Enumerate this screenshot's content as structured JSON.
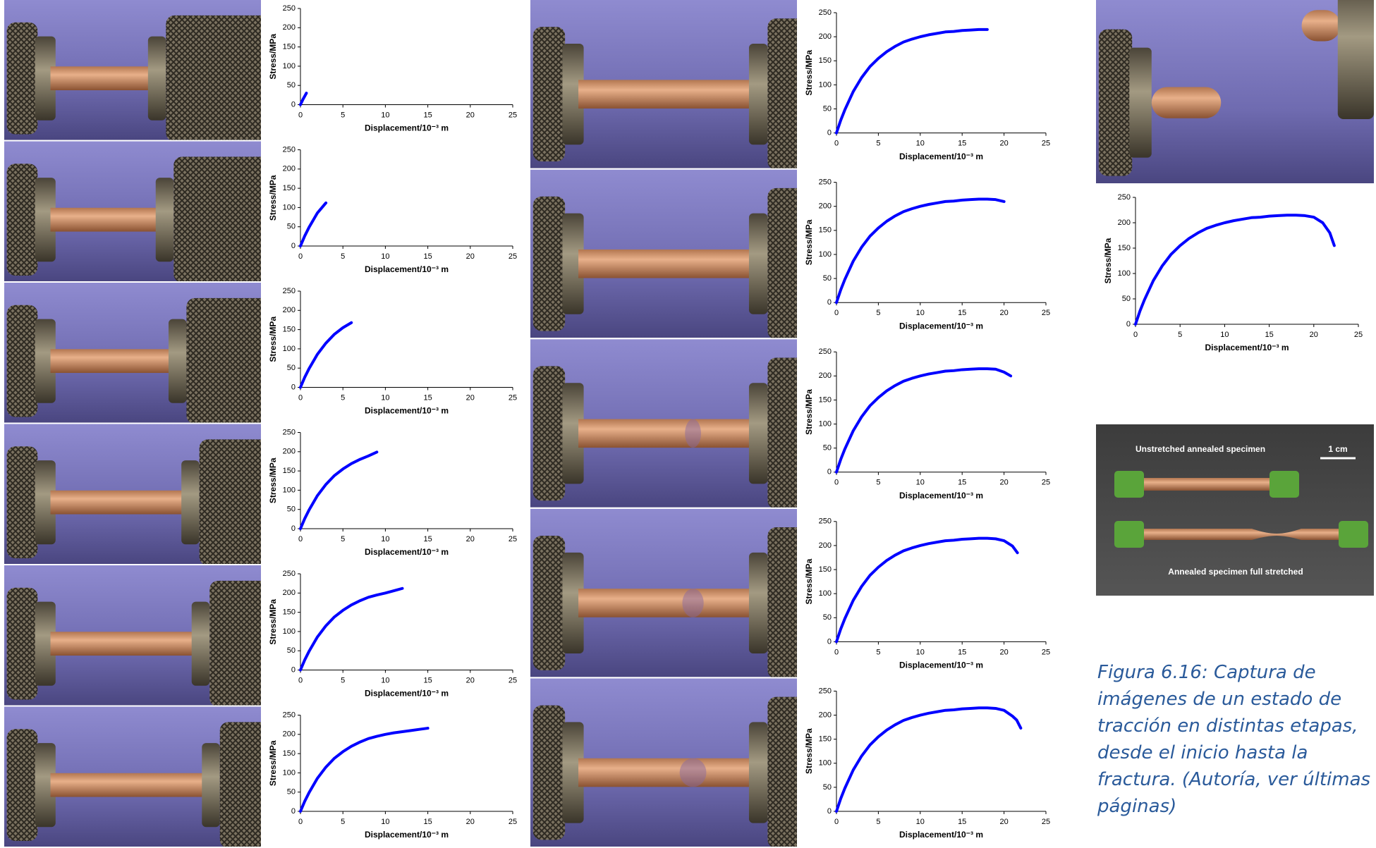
{
  "chart_data": [
    {
      "type": "line",
      "y_label": "Stress/MPa",
      "x_label": "Displacement/10⁻³ m",
      "xlim": [
        0,
        25
      ],
      "ylim": [
        0,
        250
      ],
      "xticks": [
        0,
        5,
        10,
        15,
        20,
        25
      ],
      "yticks": [
        0,
        50,
        100,
        150,
        200,
        250
      ],
      "series": [
        {
          "color": "#0000ff",
          "x": [
            0,
            0.3,
            0.7
          ],
          "values": [
            0,
            14,
            30
          ]
        }
      ]
    },
    {
      "type": "line",
      "y_label": "Stress/MPa",
      "x_label": "Displacement/10⁻³ m",
      "xlim": [
        0,
        25
      ],
      "ylim": [
        0,
        250
      ],
      "xticks": [
        0,
        5,
        10,
        15,
        20,
        25
      ],
      "yticks": [
        0,
        50,
        100,
        150,
        200,
        250
      ],
      "series": [
        {
          "color": "#0000ff",
          "x": [
            0,
            0.5,
            1,
            2,
            3
          ],
          "values": [
            0,
            26,
            48,
            86,
            112
          ]
        }
      ]
    },
    {
      "type": "line",
      "y_label": "Stress/MPa",
      "x_label": "Displacement/10⁻³ m",
      "xlim": [
        0,
        25
      ],
      "ylim": [
        0,
        250
      ],
      "xticks": [
        0,
        5,
        10,
        15,
        20,
        25
      ],
      "yticks": [
        0,
        50,
        100,
        150,
        200,
        250
      ],
      "series": [
        {
          "color": "#0000ff",
          "x": [
            0,
            0.5,
            1,
            2,
            3,
            4,
            5,
            6
          ],
          "values": [
            0,
            26,
            48,
            86,
            115,
            138,
            155,
            168
          ]
        }
      ]
    },
    {
      "type": "line",
      "y_label": "Stress/MPa",
      "x_label": "Displacement/10⁻³ m",
      "xlim": [
        0,
        25
      ],
      "ylim": [
        0,
        250
      ],
      "xticks": [
        0,
        5,
        10,
        15,
        20,
        25
      ],
      "yticks": [
        0,
        50,
        100,
        150,
        200,
        250
      ],
      "series": [
        {
          "color": "#0000ff",
          "x": [
            0,
            0.5,
            1,
            2,
            3,
            4,
            5,
            6,
            7,
            8,
            9
          ],
          "values": [
            0,
            26,
            48,
            86,
            115,
            138,
            155,
            169,
            180,
            189,
            199
          ]
        }
      ]
    },
    {
      "type": "line",
      "y_label": "Stress/MPa",
      "x_label": "Displacement/10⁻³ m",
      "xlim": [
        0,
        25
      ],
      "ylim": [
        0,
        250
      ],
      "xticks": [
        0,
        5,
        10,
        15,
        20,
        25
      ],
      "yticks": [
        0,
        50,
        100,
        150,
        200,
        250
      ],
      "series": [
        {
          "color": "#0000ff",
          "x": [
            0,
            0.5,
            1,
            2,
            3,
            4,
            5,
            6,
            7,
            8,
            9,
            10,
            11,
            12
          ],
          "values": [
            0,
            26,
            48,
            86,
            115,
            138,
            155,
            169,
            180,
            189,
            195,
            200,
            206,
            212
          ]
        }
      ]
    },
    {
      "type": "line",
      "y_label": "Stress/MPa",
      "x_label": "Displacement/10⁻³ m",
      "xlim": [
        0,
        25
      ],
      "ylim": [
        0,
        250
      ],
      "xticks": [
        0,
        5,
        10,
        15,
        20,
        25
      ],
      "yticks": [
        0,
        50,
        100,
        150,
        200,
        250
      ],
      "series": [
        {
          "color": "#0000ff",
          "x": [
            0,
            0.5,
            1,
            2,
            3,
            4,
            5,
            6,
            7,
            8,
            9,
            10,
            11,
            12,
            13,
            14,
            15
          ],
          "values": [
            0,
            26,
            48,
            86,
            115,
            138,
            155,
            169,
            180,
            189,
            195,
            200,
            204,
            207,
            210,
            213,
            216
          ]
        }
      ]
    },
    {
      "type": "line",
      "y_label": "Stress/MPa",
      "x_label": "Displacement/10⁻³ m",
      "xlim": [
        0,
        25
      ],
      "ylim": [
        0,
        250
      ],
      "xticks": [
        0,
        5,
        10,
        15,
        20,
        25
      ],
      "yticks": [
        0,
        50,
        100,
        150,
        200,
        250
      ],
      "series": [
        {
          "color": "#0000ff",
          "x": [
            0,
            0.5,
            1,
            2,
            3,
            4,
            5,
            6,
            7,
            8,
            9,
            10,
            11,
            12,
            13,
            14,
            15,
            16,
            17,
            18
          ],
          "values": [
            0,
            26,
            48,
            86,
            115,
            138,
            155,
            169,
            180,
            189,
            195,
            200,
            204,
            207,
            210,
            211,
            213,
            214,
            215,
            215
          ]
        }
      ]
    },
    {
      "type": "line",
      "y_label": "Stress/MPa",
      "x_label": "Displacement/10⁻³ m",
      "xlim": [
        0,
        25
      ],
      "ylim": [
        0,
        250
      ],
      "xticks": [
        0,
        5,
        10,
        15,
        20,
        25
      ],
      "yticks": [
        0,
        50,
        100,
        150,
        200,
        250
      ],
      "series": [
        {
          "color": "#0000ff",
          "x": [
            0,
            0.5,
            1,
            2,
            3,
            4,
            5,
            6,
            7,
            8,
            9,
            10,
            11,
            12,
            13,
            14,
            15,
            16,
            17,
            18,
            19,
            20
          ],
          "values": [
            0,
            26,
            48,
            86,
            115,
            138,
            155,
            169,
            180,
            189,
            195,
            200,
            204,
            207,
            210,
            211,
            213,
            214,
            215,
            215,
            214,
            210
          ]
        }
      ]
    },
    {
      "type": "line",
      "y_label": "Stress/MPa",
      "x_label": "Displacement/10⁻³ m",
      "xlim": [
        0,
        25
      ],
      "ylim": [
        0,
        250
      ],
      "xticks": [
        0,
        5,
        10,
        15,
        20,
        25
      ],
      "yticks": [
        0,
        50,
        100,
        150,
        200,
        250
      ],
      "series": [
        {
          "color": "#0000ff",
          "x": [
            0,
            0.5,
            1,
            2,
            3,
            4,
            5,
            6,
            7,
            8,
            9,
            10,
            11,
            12,
            13,
            14,
            15,
            16,
            17,
            18,
            19,
            20,
            20.8
          ],
          "values": [
            0,
            26,
            48,
            86,
            115,
            138,
            155,
            169,
            180,
            189,
            195,
            200,
            204,
            207,
            210,
            211,
            213,
            214,
            215,
            215,
            214,
            208,
            200
          ]
        }
      ]
    },
    {
      "type": "line",
      "y_label": "Stress/MPa",
      "x_label": "Displacement/10⁻³ m",
      "xlim": [
        0,
        25
      ],
      "ylim": [
        0,
        250
      ],
      "xticks": [
        0,
        5,
        10,
        15,
        20,
        25
      ],
      "yticks": [
        0,
        50,
        100,
        150,
        200,
        250
      ],
      "series": [
        {
          "color": "#0000ff",
          "x": [
            0,
            0.5,
            1,
            2,
            3,
            4,
            5,
            6,
            7,
            8,
            9,
            10,
            11,
            12,
            13,
            14,
            15,
            16,
            17,
            18,
            19,
            20,
            21,
            21.6
          ],
          "values": [
            0,
            26,
            48,
            86,
            115,
            138,
            155,
            169,
            180,
            189,
            195,
            200,
            204,
            207,
            210,
            211,
            213,
            214,
            215,
            215,
            214,
            210,
            199,
            185
          ]
        }
      ]
    },
    {
      "type": "line",
      "y_label": "Stress/MPa",
      "x_label": "Displacement/10⁻³ m",
      "xlim": [
        0,
        25
      ],
      "ylim": [
        0,
        250
      ],
      "xticks": [
        0,
        5,
        10,
        15,
        20,
        25
      ],
      "yticks": [
        0,
        50,
        100,
        150,
        200,
        250
      ],
      "series": [
        {
          "color": "#0000ff",
          "x": [
            0,
            0.5,
            1,
            2,
            3,
            4,
            5,
            6,
            7,
            8,
            9,
            10,
            11,
            12,
            13,
            14,
            15,
            16,
            17,
            18,
            19,
            20,
            21,
            21.5,
            22
          ],
          "values": [
            0,
            26,
            48,
            86,
            115,
            138,
            155,
            169,
            180,
            189,
            195,
            200,
            204,
            207,
            210,
            211,
            213,
            214,
            215,
            215,
            214,
            210,
            198,
            190,
            173
          ]
        }
      ]
    },
    {
      "type": "line",
      "y_label": "Stress/MPa",
      "x_label": "Displacement/10⁻³ m",
      "xlim": [
        0,
        25
      ],
      "ylim": [
        0,
        250
      ],
      "xticks": [
        0,
        5,
        10,
        15,
        20,
        25
      ],
      "yticks": [
        0,
        50,
        100,
        150,
        200,
        250
      ],
      "series": [
        {
          "color": "#0000ff",
          "x": [
            0,
            0.5,
            1,
            2,
            3,
            4,
            5,
            6,
            7,
            8,
            9,
            10,
            11,
            12,
            13,
            14,
            15,
            16,
            17,
            18,
            19,
            20,
            21,
            21.8,
            22.3
          ],
          "values": [
            0,
            26,
            48,
            86,
            115,
            138,
            155,
            169,
            180,
            189,
            195,
            200,
            204,
            207,
            210,
            211,
            213,
            214,
            215,
            215,
            214,
            211,
            200,
            180,
            155
          ]
        }
      ]
    }
  ],
  "specimen_photo": {
    "top_label": "Unstretched annealed specimen",
    "scale_label": "1 cm",
    "bottom_label": "Annealed specimen full stretched"
  },
  "caption": "Figura 6.16: Captura de imágenes de un estado de tracción en distintas etapas, desde el inicio hasta la fractura. (Autoría, ver últimas páginas)"
}
